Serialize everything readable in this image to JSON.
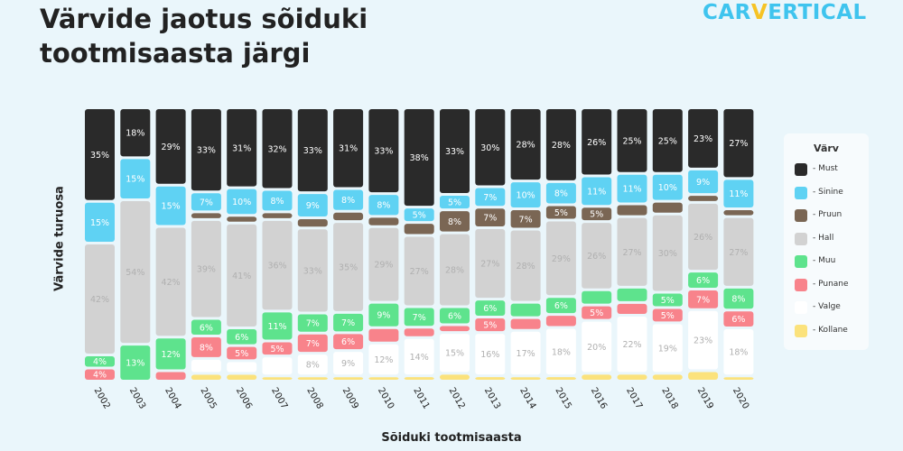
{
  "header": {
    "title": "Värvide jaotus sõiduki tootmisaasta järgi",
    "logo_left": "CAR",
    "logo_v": "V",
    "logo_right": "ERTICAL"
  },
  "chart_data": {
    "type": "bar",
    "stacked": true,
    "normalized": true,
    "categories": [
      "2002",
      "2003",
      "2004",
      "2005",
      "2006",
      "2007",
      "2008",
      "2009",
      "2010",
      "2011",
      "2012",
      "2013",
      "2014",
      "2015",
      "2016",
      "2017",
      "2018",
      "2019",
      "2020"
    ],
    "xlabel": "Sõiduki tootmisaasta",
    "ylabel": "Värvide turuosa",
    "legend_title": "Värv",
    "legend_position": "right",
    "series": [
      {
        "name": "- Must",
        "color": "#2a2a2a",
        "values": [
          35,
          18,
          29,
          33,
          31,
          32,
          33,
          31,
          33,
          38,
          33,
          30,
          28,
          28,
          26,
          25,
          25,
          23,
          27
        ],
        "labels": [
          "35%",
          "18%",
          "29%",
          "33%",
          "31%",
          "32%",
          "33%",
          "31%",
          "33%",
          "38%",
          "33%",
          "30%",
          "28%",
          "28%",
          "26%",
          "25%",
          "25%",
          "23%",
          "27%"
        ]
      },
      {
        "name": "- Sinine",
        "color": "#5fd2f3",
        "values": [
          15,
          15,
          15,
          7,
          10,
          8,
          9,
          8,
          8,
          5,
          5,
          7,
          10,
          8,
          11,
          11,
          10,
          9,
          11
        ],
        "labels": [
          "15%",
          "15%",
          "15%",
          "7%",
          "10%",
          "8%",
          "9%",
          "8%",
          "8%",
          "5%",
          "5%",
          "7%",
          "10%",
          "8%",
          "11%",
          "11%",
          "10%",
          "9%",
          "11%"
        ]
      },
      {
        "name": "- Pruun",
        "color": "#7a6654",
        "values": [
          0,
          0,
          0,
          2,
          2,
          2,
          3,
          3,
          3,
          4,
          8,
          7,
          7,
          5,
          5,
          4,
          4,
          2,
          2
        ],
        "labels": [
          "",
          "",
          "",
          "",
          "",
          "",
          "",
          "",
          "",
          "",
          "8%",
          "7%",
          "7%",
          "5%",
          "5%",
          "",
          "",
          "",
          ""
        ]
      },
      {
        "name": "- Hall",
        "color": "#d2d2d2",
        "values": [
          42,
          54,
          42,
          39,
          41,
          36,
          33,
          35,
          29,
          27,
          28,
          27,
          28,
          29,
          26,
          27,
          30,
          26,
          27
        ],
        "labels": [
          "42%",
          "54%",
          "42%",
          "39%",
          "41%",
          "36%",
          "33%",
          "35%",
          "29%",
          "27%",
          "28%",
          "27%",
          "28%",
          "29%",
          "26%",
          "27%",
          "30%",
          "26%",
          "27%"
        ]
      },
      {
        "name": "- Muu",
        "color": "#5ee38d",
        "values": [
          4,
          13,
          12,
          6,
          6,
          11,
          7,
          7,
          9,
          7,
          6,
          6,
          5,
          6,
          5,
          5,
          5,
          6,
          8
        ],
        "labels": [
          "4%",
          "13%",
          "12%",
          "6%",
          "6%",
          "11%",
          "7%",
          "7%",
          "9%",
          "7%",
          "6%",
          "6%",
          "",
          "6%",
          "",
          "",
          "5%",
          "6%",
          "8%"
        ]
      },
      {
        "name": "- Punane",
        "color": "#f8838b",
        "values": [
          4,
          0,
          3,
          8,
          5,
          5,
          7,
          6,
          5,
          3,
          2,
          5,
          4,
          4,
          5,
          4,
          5,
          7,
          6
        ],
        "labels": [
          "4%",
          "",
          "",
          "8%",
          "5%",
          "5%",
          "7%",
          "6%",
          "",
          "",
          "",
          "5%",
          "",
          "",
          "5%",
          "",
          "5%",
          "7%",
          "6%"
        ]
      },
      {
        "name": "- Valge",
        "color": "#ffffff",
        "values": [
          0,
          0,
          0,
          5,
          4,
          7,
          8,
          9,
          12,
          14,
          15,
          16,
          17,
          18,
          20,
          22,
          19,
          23,
          18
        ],
        "labels": [
          "",
          "",
          "",
          "",
          "",
          "",
          "8%",
          "9%",
          "12%",
          "14%",
          "15%",
          "16%",
          "17%",
          "18%",
          "20%",
          "22%",
          "19%",
          "23%",
          "18%"
        ]
      },
      {
        "name": "- Kollane",
        "color": "#fbe27c",
        "values": [
          0,
          0,
          0,
          2,
          2,
          1,
          1,
          1,
          1,
          1,
          2,
          1,
          1,
          1,
          2,
          2,
          2,
          3,
          1
        ],
        "labels": [
          "",
          "",
          "",
          "",
          "",
          "",
          "",
          "",
          "",
          "",
          "",
          "",
          "",
          "",
          "",
          "",
          "",
          "",
          ""
        ]
      }
    ]
  }
}
